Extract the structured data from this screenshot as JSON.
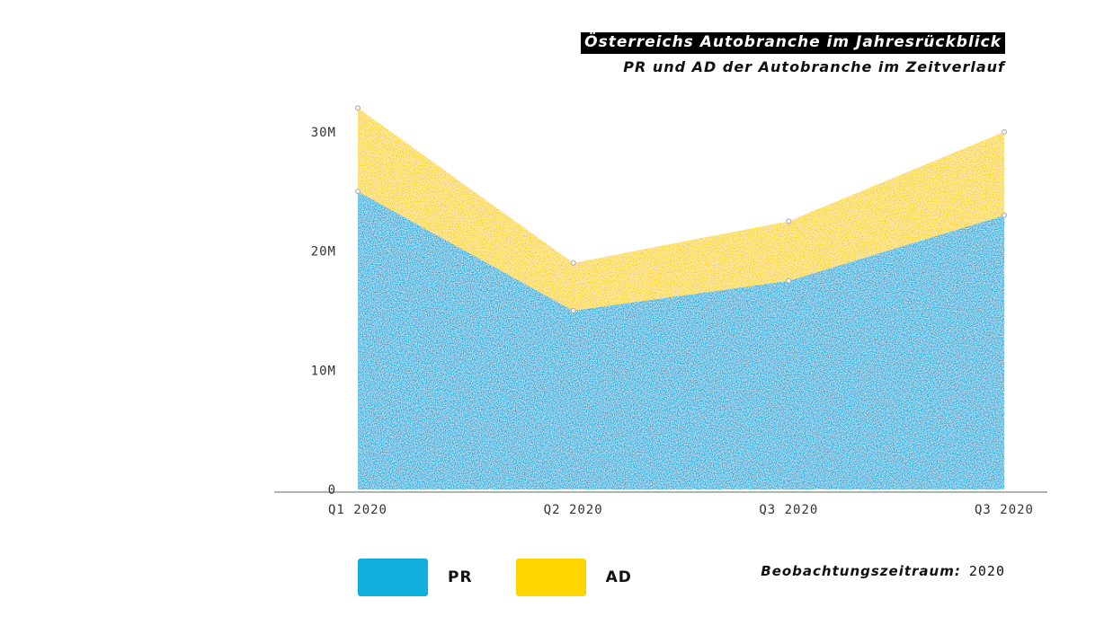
{
  "chart_data": {
    "type": "area",
    "stacked": true,
    "title": "Österreichs Autobranche im Jahresrückblick",
    "subtitle": "PR und AD der Autobranche im Zeitverlauf",
    "categories": [
      "Q1 2020",
      "Q2 2020",
      "Q3 2020",
      "Q3 2020"
    ],
    "series": [
      {
        "name": "PR",
        "values": [
          25,
          15,
          17.5,
          23
        ],
        "color": "#10aedd"
      },
      {
        "name": "AD",
        "values": [
          7,
          4,
          5,
          7
        ],
        "color": "#fdd600"
      }
    ],
    "ylim": [
      0,
      33
    ],
    "yticks": [
      {
        "value": 0,
        "label": "0"
      },
      {
        "value": 10,
        "label": "10M"
      },
      {
        "value": 20,
        "label": "20M"
      },
      {
        "value": 30,
        "label": "30M"
      }
    ],
    "grid": false,
    "legend_position": "bottom"
  },
  "footer": {
    "period_label": "Beobachtungszeitraum:",
    "period_value": "2020"
  }
}
